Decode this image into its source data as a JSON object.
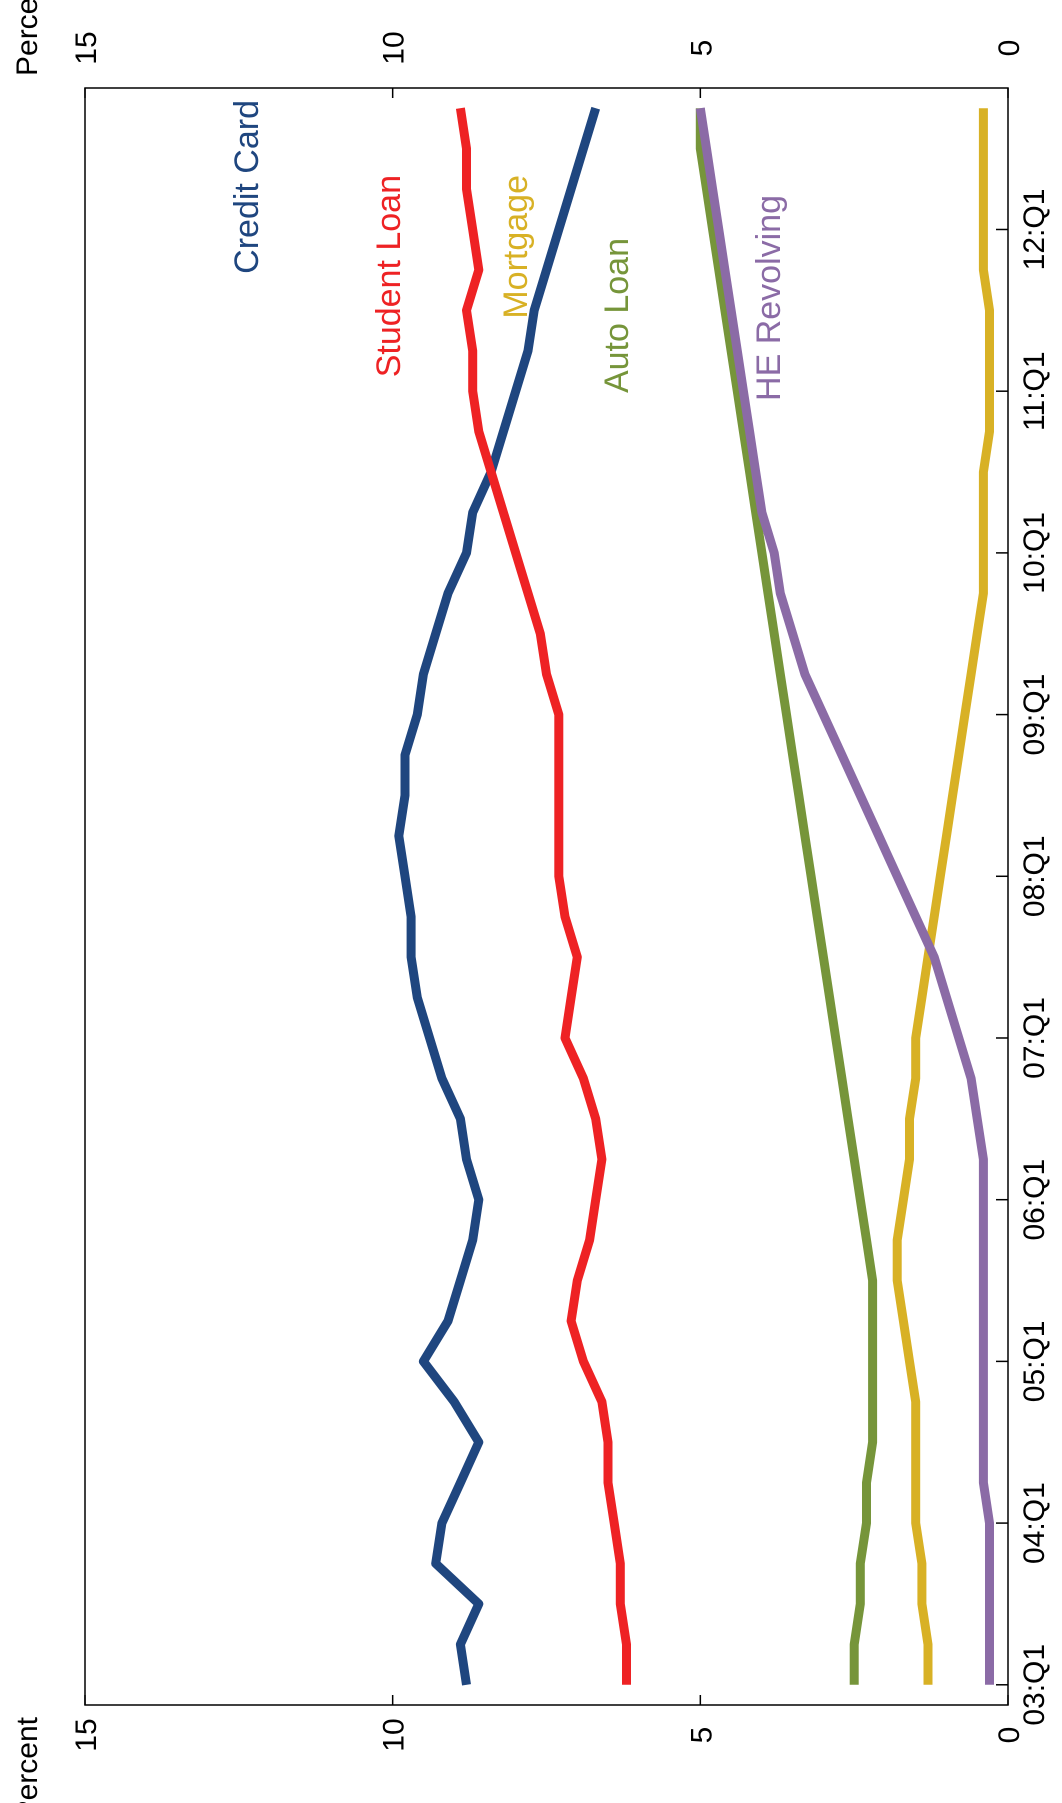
{
  "chart_data": {
    "type": "line",
    "orientation": "rotated-90-clockwise",
    "left_axis_title": "Percent",
    "right_axis_title": "Percent",
    "ylim": [
      0,
      15
    ],
    "y_ticks": [
      "0",
      "5",
      "10",
      "15"
    ],
    "x_tick_labels": [
      "03:Q1",
      "04:Q1",
      "05:Q1",
      "06:Q1",
      "07:Q1",
      "08:Q1",
      "09:Q1",
      "10:Q1",
      "11:Q1",
      "12:Q1"
    ],
    "x": [
      "03:Q1",
      "03:Q2",
      "03:Q3",
      "03:Q4",
      "04:Q1",
      "04:Q2",
      "04:Q3",
      "04:Q4",
      "05:Q1",
      "05:Q2",
      "05:Q3",
      "05:Q4",
      "06:Q1",
      "06:Q2",
      "06:Q3",
      "06:Q4",
      "07:Q1",
      "07:Q2",
      "07:Q3",
      "07:Q4",
      "08:Q1",
      "08:Q2",
      "08:Q3",
      "08:Q4",
      "09:Q1",
      "09:Q2",
      "09:Q3",
      "09:Q4",
      "10:Q1",
      "10:Q2",
      "10:Q3",
      "10:Q4",
      "11:Q1",
      "11:Q2",
      "11:Q3",
      "11:Q4",
      "12:Q1",
      "12:Q2",
      "12:Q3",
      "12:Q4"
    ],
    "grid": false,
    "legend": "inline labels",
    "series": [
      {
        "name": "Credit Card",
        "color": "#1f467f",
        "values": [
          8.8,
          8.9,
          8.6,
          9.3,
          9.2,
          8.9,
          8.6,
          9.0,
          9.5,
          9.1,
          8.9,
          8.7,
          8.6,
          8.8,
          8.9,
          9.2,
          9.4,
          9.6,
          9.7,
          9.7,
          9.8,
          9.9,
          9.8,
          9.8,
          9.6,
          9.5,
          9.3,
          9.1,
          8.8,
          8.7,
          8.4,
          8.2,
          8.0,
          7.8,
          7.7,
          7.5,
          7.3,
          7.1,
          6.9,
          6.7
        ]
      },
      {
        "name": "Student Loan",
        "color": "#ee2224",
        "values": [
          6.2,
          6.2,
          6.3,
          6.3,
          6.4,
          6.5,
          6.5,
          6.6,
          6.9,
          7.1,
          7.0,
          6.8,
          6.7,
          6.6,
          6.7,
          6.9,
          7.2,
          7.1,
          7.0,
          7.2,
          7.3,
          7.3,
          7.3,
          7.3,
          7.3,
          7.5,
          7.6,
          7.8,
          8.0,
          8.2,
          8.4,
          8.6,
          8.7,
          8.7,
          8.8,
          8.6,
          8.7,
          8.8,
          8.8,
          8.9
        ]
      },
      {
        "name": "Mortgage",
        "color": "#d8b125",
        "values": [
          1.3,
          1.3,
          1.4,
          1.4,
          1.5,
          1.5,
          1.5,
          1.5,
          1.6,
          1.7,
          1.8,
          1.8,
          1.7,
          1.6,
          1.6,
          1.5,
          1.5,
          1.4,
          1.3,
          1.2,
          1.1,
          1.0,
          0.9,
          0.8,
          0.7,
          0.6,
          0.5,
          0.4,
          0.4,
          0.4,
          0.4,
          0.3,
          0.3,
          0.3,
          0.3,
          0.4,
          0.4,
          0.4,
          0.4,
          0.4
        ]
      },
      {
        "name": "Auto Loan",
        "color": "#76953a",
        "values": [
          2.5,
          2.5,
          2.4,
          2.4,
          2.3,
          2.3,
          2.2,
          2.2,
          2.2,
          2.2,
          2.2,
          2.3,
          2.4,
          2.5,
          2.6,
          2.7,
          2.8,
          2.9,
          3.0,
          3.1,
          3.2,
          3.3,
          3.4,
          3.5,
          3.6,
          3.7,
          3.8,
          3.9,
          4.0,
          4.1,
          4.2,
          4.3,
          4.4,
          4.5,
          4.6,
          4.7,
          4.8,
          4.9,
          5.0,
          5.0
        ]
      },
      {
        "name": "HE Revolving",
        "color": "#8b6ba6",
        "values": [
          0.3,
          0.3,
          0.3,
          0.3,
          0.3,
          0.4,
          0.4,
          0.4,
          0.4,
          0.4,
          0.4,
          0.4,
          0.4,
          0.4,
          0.5,
          0.6,
          0.8,
          1.0,
          1.2,
          1.5,
          1.8,
          2.1,
          2.4,
          2.7,
          3.0,
          3.3,
          3.5,
          3.7,
          3.8,
          4.0,
          4.1,
          4.2,
          4.3,
          4.4,
          4.5,
          4.6,
          4.7,
          4.8,
          4.9,
          5.0
        ]
      }
    ]
  }
}
